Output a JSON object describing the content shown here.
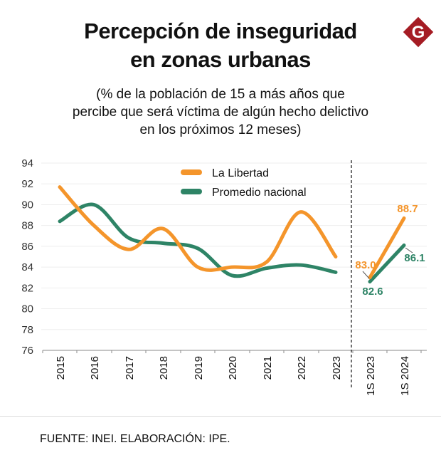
{
  "title_line1": "Percepción de inseguridad",
  "title_line2": "en zonas urbanas",
  "subtitle_line1": "(% de la población de 15 a más años que",
  "subtitle_line2": "percibe que será víctima de algún hecho delictivo",
  "subtitle_line3": "en los próximos 12 meses)",
  "source": "FUENTE: INEI. ELABORACIÓN: IPE.",
  "logo_letter": "G",
  "colors": {
    "libertad": "#F4952B",
    "nacional": "#2E8466",
    "logo": "#A51C24"
  },
  "chart_data": {
    "type": "line",
    "title": "Percepción de inseguridad en zonas urbanas",
    "xlabel": "",
    "ylabel": "",
    "ylim": [
      76,
      94
    ],
    "yticks": [
      "94",
      "92",
      "90",
      "88",
      "86",
      "84",
      "82",
      "80",
      "78",
      "76"
    ],
    "categories": [
      "2015",
      "2016",
      "2017",
      "2018",
      "2019",
      "2020",
      "2021",
      "2022",
      "2023",
      "1S 2023",
      "1S 2024"
    ],
    "legend_position": "top-center",
    "series": [
      {
        "name": "La Libertad",
        "values": [
          91.7,
          88.0,
          85.7,
          87.7,
          84.0,
          84.0,
          84.5,
          89.3,
          85.0,
          83.0,
          88.7
        ]
      },
      {
        "name": "Promedio nacional",
        "values": [
          88.4,
          90.0,
          86.8,
          86.3,
          85.8,
          83.2,
          83.9,
          84.2,
          83.5,
          82.6,
          86.1
        ]
      }
    ],
    "annotations": {
      "libertad_1s2023": "83.0",
      "libertad_1s2024": "88.7",
      "nacional_1s2023": "82.6",
      "nacional_1s2024": "86.1"
    }
  }
}
